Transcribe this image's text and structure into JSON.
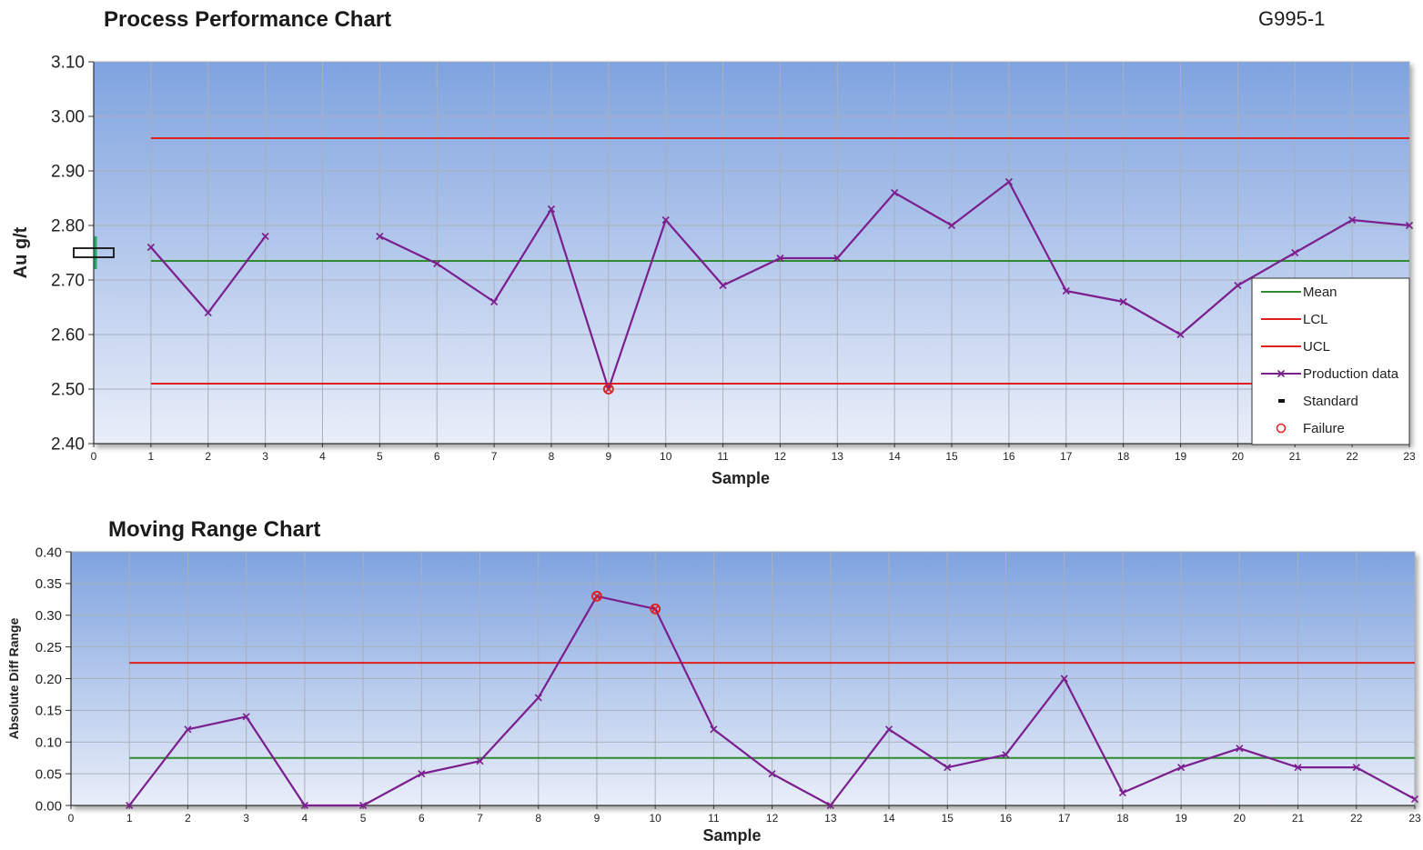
{
  "header": {
    "title": "Process Performance Chart",
    "code": "G995-1"
  },
  "colors": {
    "mean": "#2e8b2e",
    "limit": "#e01f1f",
    "production": "#7b1e8e",
    "failure": "#e01f1f",
    "plot_top": "#7fa3df",
    "plot_bottom": "#e9eef9",
    "grid": "#a9b0ba"
  },
  "chart_data": [
    {
      "type": "line",
      "title": "Process Performance Chart",
      "xlabel": "Sample",
      "ylabel": "Au g/t",
      "xlim": [
        0,
        23
      ],
      "ylim": [
        2.4,
        3.1
      ],
      "x_ticks": [
        0,
        1,
        2,
        3,
        4,
        5,
        6,
        7,
        8,
        9,
        10,
        11,
        12,
        13,
        14,
        15,
        16,
        17,
        18,
        19,
        20,
        21,
        22,
        23
      ],
      "y_ticks": [
        "2.40",
        "2.50",
        "2.60",
        "2.70",
        "2.80",
        "2.90",
        "3.00",
        "3.10"
      ],
      "grid": true,
      "legend_position": "bottom-right",
      "series": [
        {
          "name": "Mean",
          "kind": "hline",
          "value": 2.735,
          "x_range": [
            1,
            23
          ]
        },
        {
          "name": "LCL",
          "kind": "hline",
          "value": 2.51,
          "x_range": [
            1,
            23
          ]
        },
        {
          "name": "UCL",
          "kind": "hline",
          "value": 2.96,
          "x_range": [
            1,
            23
          ]
        },
        {
          "name": "Production data",
          "kind": "line",
          "x": [
            1,
            2,
            3,
            4,
            5,
            6,
            7,
            8,
            9,
            10,
            11,
            12,
            13,
            14,
            15,
            16,
            17,
            18,
            19,
            20,
            21,
            22,
            23
          ],
          "values": [
            2.76,
            2.64,
            2.78,
            null,
            2.78,
            2.73,
            2.66,
            2.83,
            2.5,
            2.81,
            2.69,
            2.74,
            2.74,
            2.86,
            2.8,
            2.88,
            2.68,
            2.66,
            2.6,
            2.69,
            2.75,
            2.81,
            2.8
          ]
        },
        {
          "name": "Standard",
          "kind": "marker",
          "x": [
            0
          ],
          "values": [
            2.75
          ]
        },
        {
          "name": "Failure",
          "kind": "marker",
          "x": [
            9
          ],
          "values": [
            2.5
          ]
        }
      ],
      "legend": [
        "Mean",
        "LCL",
        "UCL",
        "Production data",
        "Standard",
        "Failure"
      ]
    },
    {
      "type": "line",
      "title": "Moving Range Chart",
      "xlabel": "Sample",
      "ylabel": "Absolute Diff Range",
      "xlim": [
        0,
        23
      ],
      "ylim": [
        0,
        0.4
      ],
      "x_ticks": [
        0,
        1,
        2,
        3,
        4,
        5,
        6,
        7,
        8,
        9,
        10,
        11,
        12,
        13,
        14,
        15,
        16,
        17,
        18,
        19,
        20,
        21,
        22,
        23
      ],
      "y_ticks": [
        "0.00",
        "0.05",
        "0.10",
        "0.15",
        "0.20",
        "0.25",
        "0.30",
        "0.35",
        "0.40"
      ],
      "grid": true,
      "series": [
        {
          "kind": "hline",
          "value": 0.075,
          "x_range": [
            1,
            23
          ],
          "role": "mean"
        },
        {
          "kind": "hline",
          "value": 0.225,
          "x_range": [
            1,
            23
          ],
          "role": "limit"
        },
        {
          "kind": "line",
          "x": [
            1,
            2,
            3,
            4,
            5,
            6,
            7,
            8,
            9,
            10,
            11,
            12,
            13,
            14,
            15,
            16,
            17,
            18,
            19,
            20,
            21,
            22,
            23
          ],
          "values": [
            0.0,
            0.12,
            0.14,
            0.0,
            0.0,
            0.05,
            0.07,
            0.17,
            0.33,
            0.31,
            0.12,
            0.05,
            0.0,
            0.12,
            0.06,
            0.08,
            0.2,
            0.02,
            0.06,
            0.09,
            0.06,
            0.06,
            0.01
          ]
        },
        {
          "kind": "marker",
          "role": "failure",
          "x": [
            9,
            10
          ],
          "values": [
            0.33,
            0.31
          ]
        }
      ]
    }
  ]
}
